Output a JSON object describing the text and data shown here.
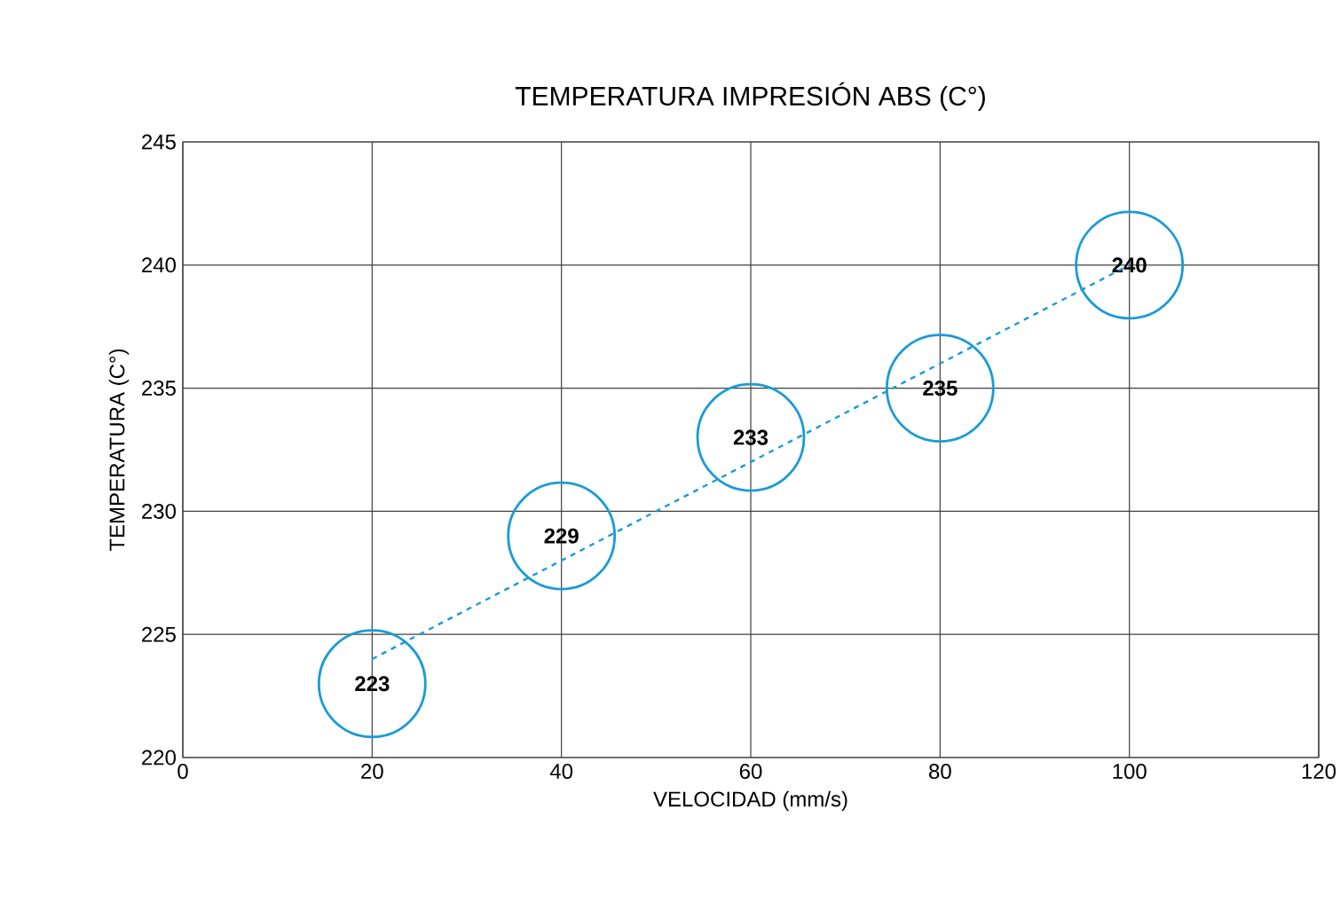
{
  "chart_data": {
    "type": "scatter",
    "title": "TEMPERATURA IMPRESIÓN ABS (C°)",
    "xlabel": "VELOCIDAD (mm/s)",
    "ylabel": "TEMPERATURA (C°)",
    "xlim": [
      0,
      120
    ],
    "xticks": [
      0,
      20,
      40,
      60,
      80,
      100,
      120
    ],
    "ylim": [
      220,
      245
    ],
    "yticks": [
      220,
      225,
      230,
      235,
      240,
      245
    ],
    "grid": true,
    "series": [
      {
        "color": "#1a9bd7",
        "marker": "circle",
        "data_labels": true,
        "x": [
          20,
          40,
          60,
          80,
          100
        ],
        "values": [
          223,
          229,
          233,
          235,
          240
        ]
      },
      {
        "type": "line",
        "color": "#1a9bd7",
        "marker": "none",
        "line_style": "dashed",
        "x": [
          20,
          100
        ],
        "values": [
          224,
          240
        ]
      }
    ]
  }
}
